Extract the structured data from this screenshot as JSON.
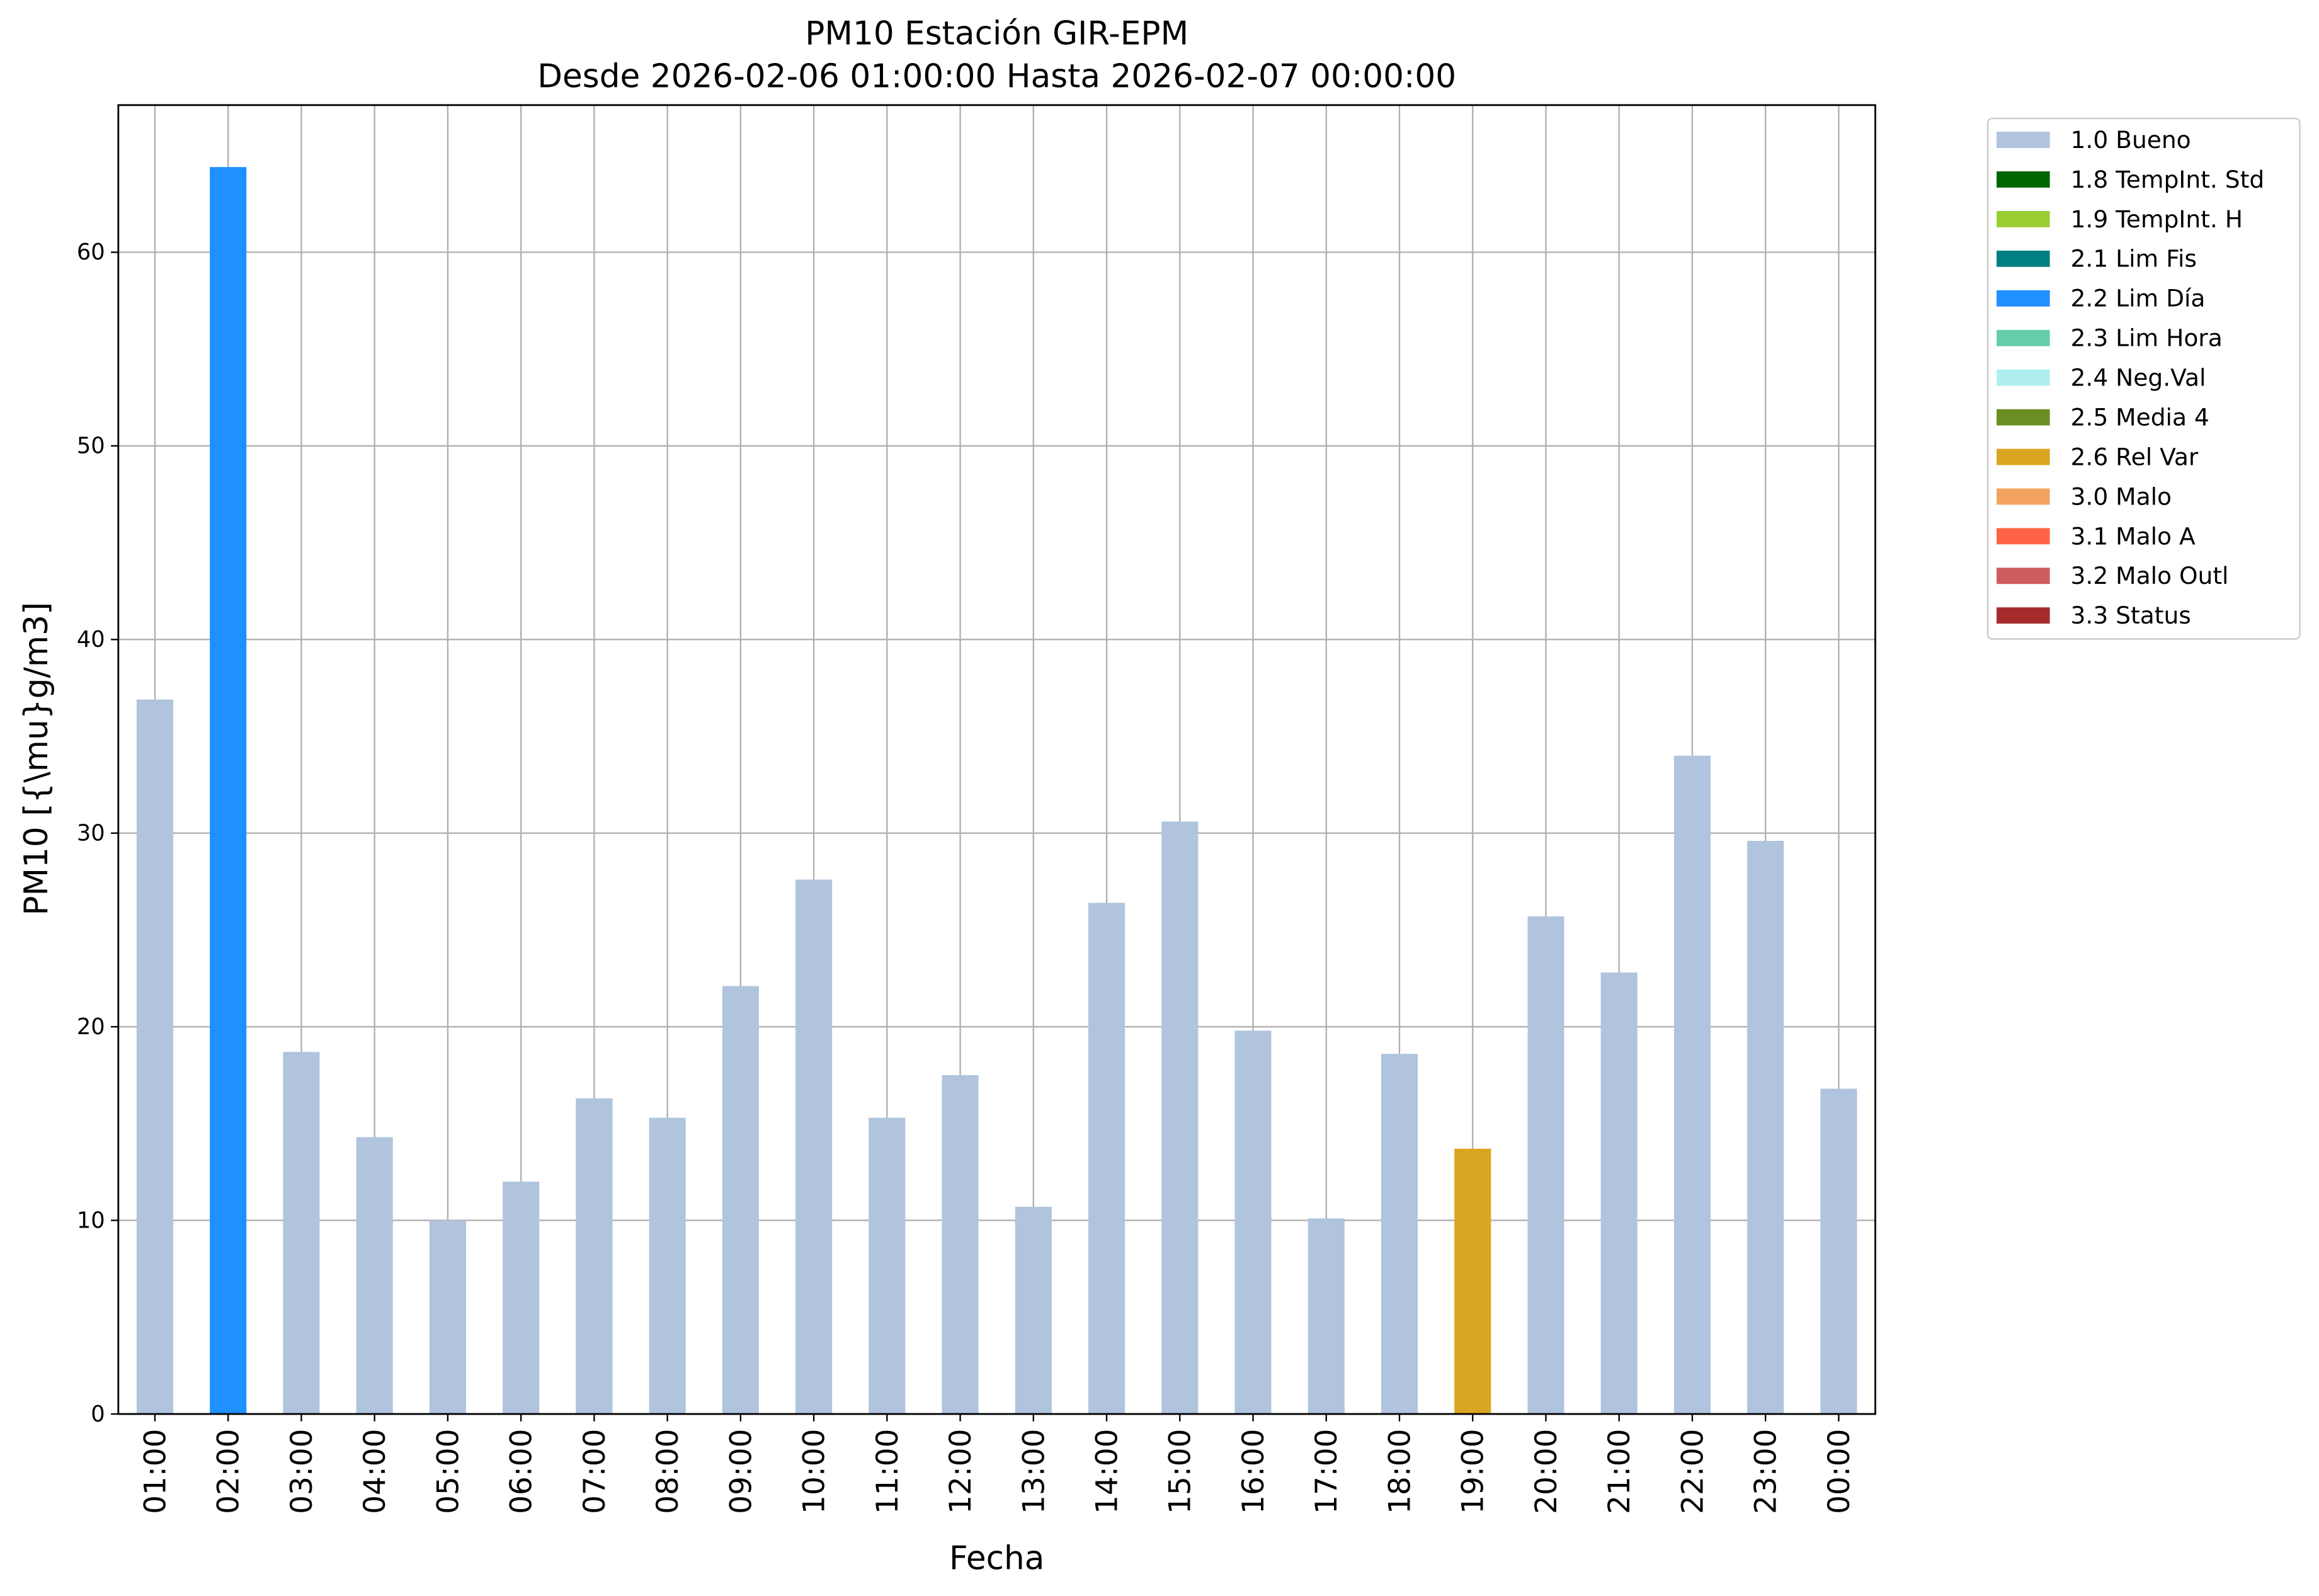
{
  "chart_data": {
    "type": "bar",
    "stacked": true,
    "title": "PM10 Estación GIR-EPM",
    "subtitle": "Desde 2026-02-06 01:00:00 Hasta 2026-02-07 00:00:00",
    "x_label": "Fecha",
    "y_label": "PM10 [{\\mu}g/m3]",
    "categories": [
      "01:00",
      "02:00",
      "03:00",
      "04:00",
      "05:00",
      "06:00",
      "07:00",
      "08:00",
      "09:00",
      "10:00",
      "11:00",
      "12:00",
      "13:00",
      "14:00",
      "15:00",
      "16:00",
      "17:00",
      "18:00",
      "19:00",
      "20:00",
      "21:00",
      "22:00",
      "23:00",
      "00:00"
    ],
    "series": [
      {
        "name": "1.0 Bueno",
        "color": "#b0c4de",
        "values": [
          36.9,
          null,
          18.7,
          14.3,
          10.0,
          12.0,
          16.3,
          15.3,
          22.1,
          27.6,
          15.3,
          17.5,
          10.7,
          26.4,
          30.6,
          19.8,
          10.1,
          18.6,
          null,
          25.7,
          22.8,
          34.0,
          29.6,
          16.8
        ]
      },
      {
        "name": "1.8 TempInt. Std",
        "color": "#006400",
        "values": [
          null,
          null,
          null,
          null,
          null,
          null,
          null,
          null,
          null,
          null,
          null,
          null,
          null,
          null,
          null,
          null,
          null,
          null,
          null,
          null,
          null,
          null,
          null,
          null
        ]
      },
      {
        "name": "1.9 TempInt. H",
        "color": "#9acd32",
        "values": [
          null,
          null,
          null,
          null,
          null,
          null,
          null,
          null,
          null,
          null,
          null,
          null,
          null,
          null,
          null,
          null,
          null,
          null,
          null,
          null,
          null,
          null,
          null,
          null
        ]
      },
      {
        "name": "2.1 Lim Fis",
        "color": "#008080",
        "values": [
          null,
          null,
          null,
          null,
          null,
          null,
          null,
          null,
          null,
          null,
          null,
          null,
          null,
          null,
          null,
          null,
          null,
          null,
          null,
          null,
          null,
          null,
          null,
          null
        ]
      },
      {
        "name": "2.2 Lim Día",
        "color": "#1e90ff",
        "values": [
          null,
          64.4,
          null,
          null,
          null,
          null,
          null,
          null,
          null,
          null,
          null,
          null,
          null,
          null,
          null,
          null,
          null,
          null,
          null,
          null,
          null,
          null,
          null,
          null
        ]
      },
      {
        "name": "2.3 Lim Hora",
        "color": "#66cdaa",
        "values": [
          null,
          null,
          null,
          null,
          null,
          null,
          null,
          null,
          null,
          null,
          null,
          null,
          null,
          null,
          null,
          null,
          null,
          null,
          null,
          null,
          null,
          null,
          null,
          null
        ]
      },
      {
        "name": "2.4 Neg.Val",
        "color": "#afeeee",
        "values": [
          null,
          null,
          null,
          null,
          null,
          null,
          null,
          null,
          null,
          null,
          null,
          null,
          null,
          null,
          null,
          null,
          null,
          null,
          null,
          null,
          null,
          null,
          null,
          null
        ]
      },
      {
        "name": "2.5 Media 4",
        "color": "#6b8e23",
        "values": [
          null,
          null,
          null,
          null,
          null,
          null,
          null,
          null,
          null,
          null,
          null,
          null,
          null,
          null,
          null,
          null,
          null,
          null,
          null,
          null,
          null,
          null,
          null,
          null
        ]
      },
      {
        "name": "2.6 Rel Var",
        "color": "#daa520",
        "values": [
          null,
          null,
          null,
          null,
          null,
          null,
          null,
          null,
          null,
          null,
          null,
          null,
          null,
          null,
          null,
          null,
          null,
          null,
          13.7,
          null,
          null,
          null,
          null,
          null
        ]
      },
      {
        "name": "3.0 Malo",
        "color": "#f4a460",
        "values": [
          null,
          null,
          null,
          null,
          null,
          null,
          null,
          null,
          null,
          null,
          null,
          null,
          null,
          null,
          null,
          null,
          null,
          null,
          null,
          null,
          null,
          null,
          null,
          null
        ]
      },
      {
        "name": "3.1 Malo A",
        "color": "#ff6347",
        "values": [
          null,
          null,
          null,
          null,
          null,
          null,
          null,
          null,
          null,
          null,
          null,
          null,
          null,
          null,
          null,
          null,
          null,
          null,
          null,
          null,
          null,
          null,
          null,
          null
        ]
      },
      {
        "name": "3.2 Malo Outl",
        "color": "#cd5c5c",
        "values": [
          null,
          null,
          null,
          null,
          null,
          null,
          null,
          null,
          null,
          null,
          null,
          null,
          null,
          null,
          null,
          null,
          null,
          null,
          null,
          null,
          null,
          null,
          null,
          null
        ]
      },
      {
        "name": "3.3 Status",
        "color": "#a52a2a",
        "values": [
          null,
          null,
          null,
          null,
          null,
          null,
          null,
          null,
          null,
          null,
          null,
          null,
          null,
          null,
          null,
          null,
          null,
          null,
          null,
          null,
          null,
          null,
          null,
          null
        ]
      }
    ],
    "ylim": [
      0,
      67.6
    ],
    "yticks": [
      0,
      10,
      20,
      30,
      40,
      50,
      60
    ],
    "grid": true,
    "legend": "outside right"
  }
}
